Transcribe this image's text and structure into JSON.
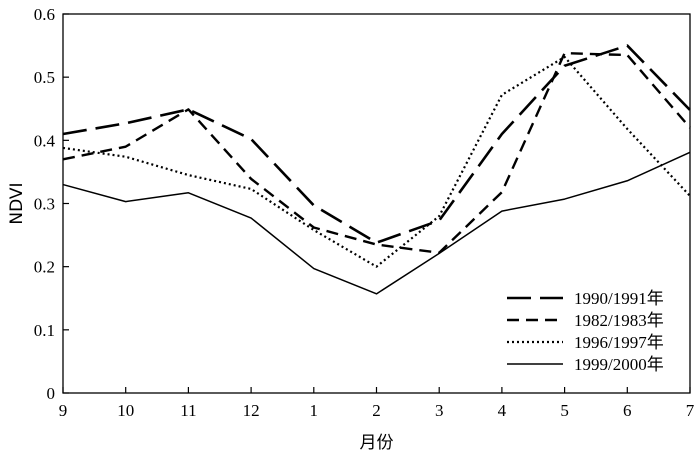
{
  "chart_data": {
    "type": "line",
    "title": "",
    "xlabel": "月份",
    "ylabel": "NDVI",
    "categories": [
      "9",
      "10",
      "11",
      "12",
      "1",
      "2",
      "3",
      "4",
      "5",
      "6",
      "7"
    ],
    "ylim": [
      0,
      0.6
    ],
    "yticks": [
      "0",
      "0.1",
      "0.2",
      "0.3",
      "0.4",
      "0.5",
      "0.6"
    ],
    "grid": false,
    "legend_position": "bottom-right",
    "series": [
      {
        "name": "1990/1991年",
        "style": "long-dash",
        "color": "#000000",
        "values": [
          0.41,
          0.427,
          0.449,
          0.402,
          0.297,
          0.238,
          0.273,
          0.41,
          0.518,
          0.55,
          0.448
        ]
      },
      {
        "name": "1982/1983年",
        "style": "dash",
        "color": "#000000",
        "values": [
          0.37,
          0.39,
          0.449,
          0.339,
          0.262,
          0.235,
          0.222,
          0.318,
          0.538,
          0.535,
          0.42
        ]
      },
      {
        "name": "1996/1997年",
        "style": "dotted",
        "color": "#000000",
        "values": [
          0.388,
          0.374,
          0.345,
          0.323,
          0.258,
          0.2,
          0.28,
          0.472,
          0.532,
          0.418,
          0.312
        ]
      },
      {
        "name": "1999/2000年",
        "style": "solid",
        "color": "#000000",
        "values": [
          0.33,
          0.303,
          0.317,
          0.277,
          0.197,
          0.157,
          0.221,
          0.288,
          0.307,
          0.336,
          0.381
        ]
      }
    ]
  }
}
